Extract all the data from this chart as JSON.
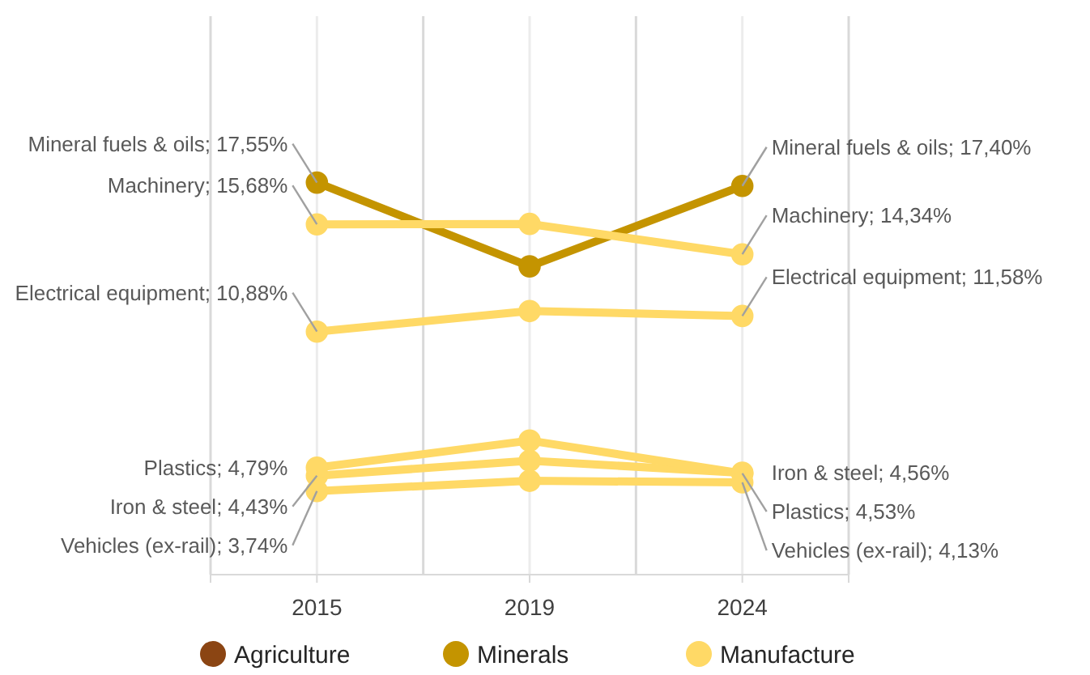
{
  "chart_data": {
    "type": "line",
    "categories": [
      "2015",
      "2019",
      "2024"
    ],
    "ylim": [
      0,
      25
    ],
    "tick_labels": "x",
    "grid": "x",
    "legend": "bottom",
    "marker": "circle",
    "line_style": "solid",
    "series": [
      {
        "name": "Agriculture",
        "color": "#8b4513",
        "values": [
          null,
          null,
          null
        ]
      },
      {
        "name": "Minerals",
        "color": "#c49400",
        "values": [
          17.55,
          13.8,
          17.4
        ],
        "value_labels": [
          "Mineral fuels & oils; 17,55%",
          null,
          "Mineral fuels & oils; 17,40%"
        ]
      },
      {
        "name": "Manufacture",
        "color": "#ffd966",
        "values": [
          15.68,
          15.7,
          14.34
        ],
        "value_labels": [
          "Machinery; 15,68%",
          null,
          "Machinery; 14,34%"
        ]
      },
      {
        "color": "#ffd966",
        "values": [
          10.88,
          11.8,
          11.58
        ],
        "value_labels": [
          "Electrical equipment; 10,88%",
          null,
          "Electrical equipment; 11,58%"
        ]
      },
      {
        "color": "#ffd966",
        "values": [
          4.43,
          5.1,
          4.56
        ],
        "value_labels": [
          "Iron & steel; 4,43%",
          null,
          "Iron & steel; 4,56%"
        ]
      },
      {
        "color": "#ffd966",
        "values": [
          4.79,
          6.0,
          4.53
        ],
        "value_labels": [
          "Plastics; 4,79%",
          null,
          "Plastics; 4,53%"
        ]
      },
      {
        "color": "#ffd966",
        "values": [
          3.74,
          4.2,
          4.13
        ],
        "value_labels": [
          "Vehicles (ex-rail); 3,74%",
          null,
          "Vehicles (ex-rail); 4,13%"
        ]
      }
    ]
  }
}
